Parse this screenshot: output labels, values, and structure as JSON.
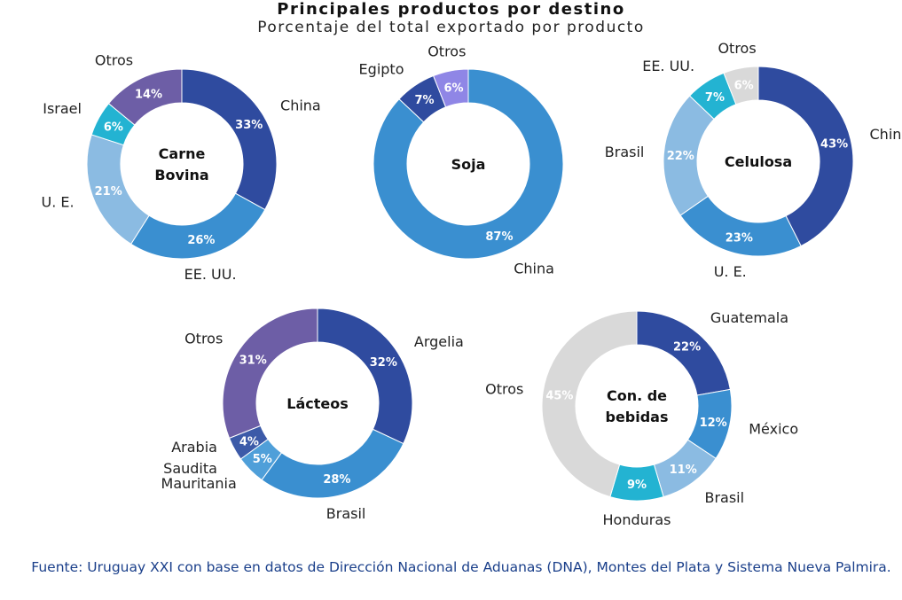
{
  "chart_data": {
    "title": "Principales productos por destino",
    "subtitle": "Porcentaje del total exportado por producto",
    "source": "Fuente: Uruguay XXI con base en datos de Dirección Nacional de Aduanas (DNA), Montes del Plata y Sistema Nueva Palmira.",
    "charts": [
      {
        "type": "pie",
        "name": [
          "Carne",
          "Bovina"
        ],
        "slices": [
          {
            "label": [
              "China"
            ],
            "value": 33,
            "color": "#2f4b9f"
          },
          {
            "label": [
              "EE. UU."
            ],
            "value": 26,
            "color": "#3a8fd0"
          },
          {
            "label": [
              "U. E."
            ],
            "value": 21,
            "color": "#8bbbe2"
          },
          {
            "label": [
              "Israel"
            ],
            "value": 6,
            "color": "#23b3d2"
          },
          {
            "label": [
              "Otros"
            ],
            "value": 14,
            "color": "#6d5ea6"
          }
        ]
      },
      {
        "type": "pie",
        "name": [
          "Soja"
        ],
        "slices": [
          {
            "label": [
              "China"
            ],
            "value": 87,
            "color": "#3a8fd0"
          },
          {
            "label": [
              "Egipto"
            ],
            "value": 7,
            "color": "#2f4b9f"
          },
          {
            "label": [
              "Otros"
            ],
            "value": 6,
            "color": "#8f86e6"
          }
        ]
      },
      {
        "type": "pie",
        "name": [
          "Celulosa"
        ],
        "slices": [
          {
            "label": [
              "China"
            ],
            "value": 43,
            "color": "#2f4b9f"
          },
          {
            "label": [
              "U. E."
            ],
            "value": 23,
            "color": "#3a8fd0"
          },
          {
            "label": [
              "Brasil"
            ],
            "value": 22,
            "color": "#8bbbe2"
          },
          {
            "label": [
              "EE. UU."
            ],
            "value": 7,
            "color": "#23b3d2"
          },
          {
            "label": [
              "Otros"
            ],
            "value": 6,
            "color": "#d9d9d9"
          }
        ]
      },
      {
        "type": "pie",
        "name": [
          "Lácteos"
        ],
        "slices": [
          {
            "label": [
              "Argelia"
            ],
            "value": 32,
            "color": "#2f4b9f"
          },
          {
            "label": [
              "Brasil"
            ],
            "value": 28,
            "color": "#3a8fd0"
          },
          {
            "label": [
              "Mauritania"
            ],
            "value": 5,
            "color": "#4f9fd9"
          },
          {
            "label": [
              "Arabia",
              "Saudita"
            ],
            "value": 4,
            "color": "#3c5aa8"
          },
          {
            "label": [
              "Otros"
            ],
            "value": 31,
            "color": "#6d5ea6"
          }
        ]
      },
      {
        "type": "pie",
        "name": [
          "Con. de",
          "bebidas"
        ],
        "slices": [
          {
            "label": [
              "Guatemala"
            ],
            "value": 22,
            "color": "#2f4b9f"
          },
          {
            "label": [
              "México"
            ],
            "value": 12,
            "color": "#3a8fd0"
          },
          {
            "label": [
              "Brasil"
            ],
            "value": 11,
            "color": "#8bbbe2"
          },
          {
            "label": [
              "Honduras"
            ],
            "value": 9,
            "color": "#23b3d2"
          },
          {
            "label": [
              "Otros"
            ],
            "value": 45,
            "color": "#d9d9d9"
          }
        ]
      }
    ]
  }
}
